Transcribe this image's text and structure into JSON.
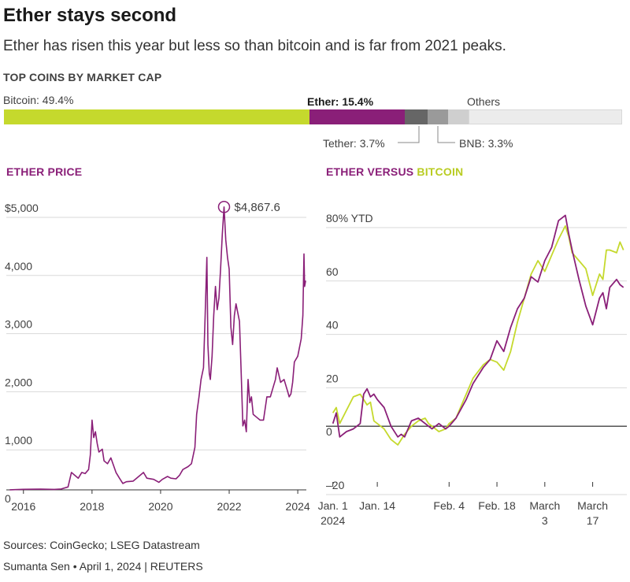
{
  "title": "Ether stays second",
  "subtitle": "Ether has risen this year but less so than bitcoin and is far from 2021 peaks.",
  "colors": {
    "ether": "#8a1f78",
    "bitcoin": "#c5d92d",
    "tether": "#666666",
    "bnb": "#9a9a9a",
    "others_light": "#cfcfcf",
    "others": "#ececec"
  },
  "market_cap": {
    "heading": "TOP COINS BY MARKET CAP",
    "bitcoin_label": "Bitcoin: 49.4%",
    "ether_label": "Ether: 15.4%",
    "others_label": "Others",
    "tether_label": "Tether: 3.7%",
    "bnb_label": "BNB: 3.3%"
  },
  "ether_price": {
    "heading": "ETHER PRICE",
    "peak_label": "$4,867.6"
  },
  "ether_vs_bitcoin": {
    "heading_ether": "ETHER",
    "heading_mid": " VERSUS ",
    "heading_bitcoin": "BITCOIN"
  },
  "footer": {
    "sources": "Sources: CoinGecko; LSEG Datastream",
    "credit": "Sumanta Sen • April 1, 2024 | REUTERS"
  },
  "chart_data": [
    {
      "type": "bar",
      "title": "TOP COINS BY MARKET CAP",
      "categories": [
        "Bitcoin",
        "Ether",
        "Tether",
        "BNB",
        "Others"
      ],
      "values": [
        49.4,
        15.4,
        3.7,
        3.3,
        28.2
      ],
      "extra_segment_pct": 3.3
    },
    {
      "type": "line",
      "title": "ETHER PRICE",
      "y_tick_labels": [
        "$5,000",
        "4,000",
        "3,000",
        "2,000",
        "1,000",
        "0"
      ],
      "y_ticks": [
        5000,
        4000,
        3000,
        2000,
        1000,
        0
      ],
      "x_tick_labels": [
        "2016",
        "2018",
        "2020",
        "2022",
        "2024"
      ],
      "x_ticks": [
        2016,
        2018,
        2020,
        2022,
        2024
      ],
      "xlim": [
        2015.5,
        2024.25
      ],
      "ylim": [
        0,
        5000
      ],
      "annotation": {
        "x": 2021.85,
        "y": 4867.6,
        "label": "$4,867.6"
      },
      "series": [
        {
          "x": [
            2015.6,
            2016.0,
            2016.5,
            2016.9,
            2017.1,
            2017.3,
            2017.4,
            2017.5,
            2017.6,
            2017.7,
            2017.8,
            2017.9,
            2017.95,
            2018.0,
            2018.05,
            2018.1,
            2018.15,
            2018.2,
            2018.3,
            2018.35,
            2018.45,
            2018.55,
            2018.7,
            2018.8,
            2018.9,
            2019.0,
            2019.2,
            2019.4,
            2019.5,
            2019.6,
            2019.8,
            2019.95,
            2020.05,
            2020.2,
            2020.3,
            2020.45,
            2020.55,
            2020.65,
            2020.8,
            2020.9,
            2021.0,
            2021.05,
            2021.12,
            2021.18,
            2021.25,
            2021.3,
            2021.35,
            2021.38,
            2021.42,
            2021.45,
            2021.5,
            2021.55,
            2021.6,
            2021.65,
            2021.7,
            2021.75,
            2021.8,
            2021.85,
            2021.9,
            2021.95,
            2022.0,
            2022.05,
            2022.1,
            2022.15,
            2022.2,
            2022.3,
            2022.35,
            2022.4,
            2022.45,
            2022.5,
            2022.55,
            2022.6,
            2022.65,
            2022.7,
            2022.8,
            2022.9,
            2023.0,
            2023.1,
            2023.2,
            2023.3,
            2023.35,
            2023.4,
            2023.5,
            2023.6,
            2023.7,
            2023.75,
            2023.8,
            2023.85,
            2023.9,
            2024.0,
            2024.05,
            2024.1,
            2024.15,
            2024.18,
            2024.2,
            2024.23
          ],
          "y": [
            1,
            10,
            12,
            8,
            15,
            50,
            300,
            250,
            200,
            300,
            280,
            350,
            600,
            1200,
            900,
            1000,
            800,
            650,
            700,
            500,
            450,
            550,
            300,
            200,
            110,
            140,
            150,
            250,
            300,
            200,
            180,
            130,
            180,
            230,
            200,
            190,
            250,
            350,
            400,
            450,
            730,
            1300,
            1600,
            1900,
            2100,
            3000,
            4000,
            2500,
            2000,
            1900,
            2300,
            3000,
            3500,
            3100,
            3300,
            3800,
            4400,
            4867.6,
            4300,
            4000,
            3800,
            2800,
            2500,
            3000,
            3200,
            2900,
            2000,
            1100,
            1200,
            1000,
            1900,
            1500,
            1600,
            1300,
            1250,
            1200,
            1200,
            1600,
            1600,
            1800,
            1900,
            2100,
            1850,
            1900,
            1700,
            1600,
            1650,
            1850,
            2200,
            2300,
            2450,
            2600,
            3000,
            4060,
            3500,
            3600
          ]
        }
      ]
    },
    {
      "type": "line",
      "title": "ETHER VERSUS BITCOIN",
      "ylabel": "80% YTD",
      "y_tick_labels": [
        "80% YTD",
        "60",
        "40",
        "20",
        "0",
        "–20"
      ],
      "y_ticks": [
        80,
        60,
        40,
        20,
        0,
        -20
      ],
      "ylim": [
        -20,
        80
      ],
      "x_tick_labels": [
        "Jan. 1 2024",
        "Jan. 14",
        "Feb. 4",
        "Feb. 18",
        "March 3",
        "March 17"
      ],
      "x_ticks": [
        1,
        14,
        35,
        49,
        63,
        77
      ],
      "xlim": [
        -1,
        87
      ],
      "series": [
        {
          "name": "ETHER",
          "x": [
            1,
            2,
            3,
            5,
            7,
            9,
            10,
            11,
            12,
            13,
            14,
            16,
            18,
            20,
            21,
            22,
            24,
            26,
            28,
            29,
            30,
            32,
            34,
            35,
            37,
            40,
            42,
            45,
            47,
            49,
            51,
            53,
            55,
            57,
            59,
            61,
            63,
            65,
            67,
            69,
            70,
            71,
            73,
            75,
            77,
            79,
            80,
            81,
            82,
            84,
            85,
            86
          ],
          "y": [
            1,
            5,
            -4,
            -2,
            -1,
            1,
            12,
            14,
            11,
            12,
            10,
            7,
            0,
            -4,
            -3,
            -4,
            2,
            3,
            1,
            0,
            -1,
            1,
            -1,
            0,
            3,
            10,
            16,
            22,
            25,
            32,
            28,
            37,
            44,
            48,
            56,
            54,
            62,
            67,
            77,
            79,
            72,
            66,
            55,
            45,
            38,
            48,
            50,
            44,
            52,
            55,
            53,
            52
          ]
        },
        {
          "name": "BITCOIN",
          "x": [
            1,
            2,
            3,
            5,
            7,
            9,
            10,
            11,
            12,
            13,
            14,
            16,
            18,
            20,
            21,
            22,
            24,
            26,
            28,
            29,
            30,
            32,
            34,
            35,
            37,
            40,
            42,
            45,
            47,
            49,
            51,
            53,
            55,
            57,
            59,
            61,
            63,
            65,
            67,
            69,
            70,
            71,
            73,
            75,
            77,
            79,
            80,
            81,
            82,
            84,
            85,
            86
          ],
          "y": [
            5,
            7,
            1,
            6,
            11,
            12,
            10,
            8,
            9,
            2,
            1,
            -1,
            -5,
            -7,
            -5,
            -3,
            0,
            2,
            3,
            1,
            0,
            -2,
            -1,
            1,
            3,
            12,
            18,
            23,
            25,
            24,
            21,
            28,
            39,
            48,
            57,
            62,
            58,
            64,
            70,
            75,
            71,
            65,
            62,
            59,
            49,
            57,
            55,
            66,
            66,
            65,
            69,
            66
          ]
        }
      ]
    }
  ]
}
